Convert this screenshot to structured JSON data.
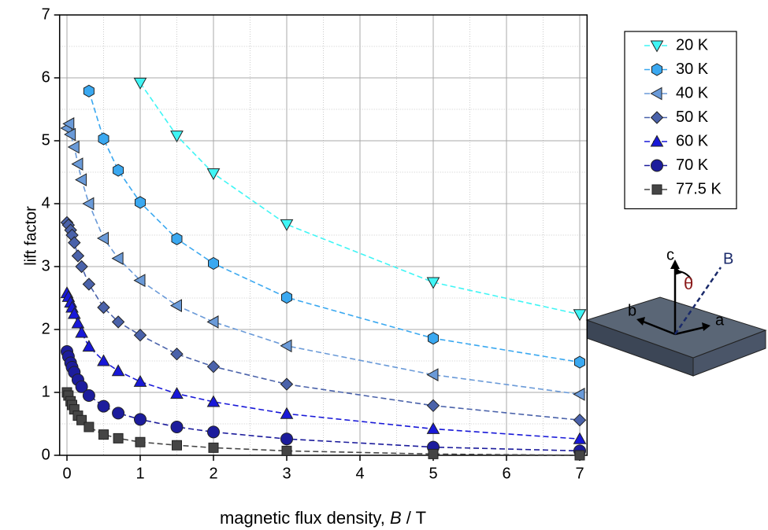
{
  "chart_data": {
    "type": "scatter",
    "xlabel": [
      "magnetic flux density, ",
      "B",
      " / T"
    ],
    "ylabel": "lift factor",
    "xlim": [
      -0.1,
      7.1
    ],
    "ylim": [
      0,
      7
    ],
    "xticks": [
      0,
      1,
      2,
      3,
      4,
      5,
      6,
      7
    ],
    "yticks": [
      0,
      1,
      2,
      3,
      4,
      5,
      6,
      7
    ],
    "grid": true,
    "minor_grid": true,
    "legend": "upper right",
    "fit_lines": "dashed",
    "series": [
      {
        "name": "20 K",
        "color": "#3ff5f5",
        "marker": "triangle-down",
        "x": [
          1,
          1.5,
          2,
          3,
          5,
          7
        ],
        "values": [
          5.92,
          5.08,
          4.48,
          3.67,
          2.75,
          2.24
        ]
      },
      {
        "name": "30 K",
        "color": "#3aa8f0",
        "marker": "hexagon",
        "x": [
          0.3,
          0.5,
          0.7,
          1,
          1.5,
          2,
          3,
          5,
          7
        ],
        "values": [
          5.79,
          5.03,
          4.53,
          4.02,
          3.44,
          3.05,
          2.51,
          1.86,
          1.48
        ]
      },
      {
        "name": "40 K",
        "color": "#6a9ad8",
        "marker": "triangle-left",
        "x": [
          0,
          0.03,
          0.05,
          0.1,
          0.15,
          0.2,
          0.3,
          0.5,
          0.7,
          1,
          1.5,
          2,
          3,
          5,
          7
        ],
        "values": [
          5.2,
          5.27,
          5.1,
          4.9,
          4.63,
          4.38,
          4.0,
          3.45,
          3.13,
          2.78,
          2.38,
          2.12,
          1.74,
          1.28,
          0.97
        ]
      },
      {
        "name": "50 K",
        "color": "#4a62aa",
        "marker": "diamond",
        "x": [
          0,
          0.02,
          0.05,
          0.07,
          0.1,
          0.15,
          0.2,
          0.3,
          0.5,
          0.7,
          1,
          1.5,
          2,
          3,
          5,
          7
        ],
        "values": [
          3.7,
          3.66,
          3.58,
          3.5,
          3.38,
          3.17,
          3.0,
          2.72,
          2.35,
          2.12,
          1.91,
          1.61,
          1.41,
          1.13,
          0.79,
          0.56
        ]
      },
      {
        "name": "60 K",
        "color": "#1818d8",
        "marker": "triangle-up",
        "x": [
          0,
          0.02,
          0.05,
          0.07,
          0.1,
          0.15,
          0.2,
          0.3,
          0.5,
          0.7,
          1,
          1.5,
          2,
          3,
          5,
          7
        ],
        "values": [
          2.58,
          2.52,
          2.43,
          2.35,
          2.25,
          2.1,
          1.95,
          1.73,
          1.5,
          1.34,
          1.17,
          0.98,
          0.85,
          0.66,
          0.42,
          0.26
        ]
      },
      {
        "name": "70 K",
        "color": "#1c1c9c",
        "marker": "circle",
        "x": [
          0,
          0.02,
          0.05,
          0.07,
          0.1,
          0.15,
          0.2,
          0.3,
          0.5,
          0.7,
          1,
          1.5,
          2,
          3,
          5,
          7
        ],
        "values": [
          1.65,
          1.57,
          1.47,
          1.4,
          1.32,
          1.2,
          1.09,
          0.95,
          0.78,
          0.67,
          0.57,
          0.45,
          0.37,
          0.26,
          0.13,
          0.07
        ]
      },
      {
        "name": "77.5 K",
        "color": "#454545",
        "marker": "square",
        "x": [
          0,
          0.02,
          0.05,
          0.07,
          0.1,
          0.15,
          0.2,
          0.3,
          0.5,
          0.7,
          1,
          1.5,
          2,
          3,
          5,
          7
        ],
        "values": [
          1.0,
          0.95,
          0.86,
          0.8,
          0.73,
          0.63,
          0.56,
          0.45,
          0.33,
          0.27,
          0.21,
          0.16,
          0.12,
          0.07,
          0.02,
          0.0
        ]
      }
    ]
  },
  "inset": {
    "labels": {
      "c": "c",
      "B": "B",
      "theta": "θ",
      "b": "b",
      "a": "a"
    }
  }
}
